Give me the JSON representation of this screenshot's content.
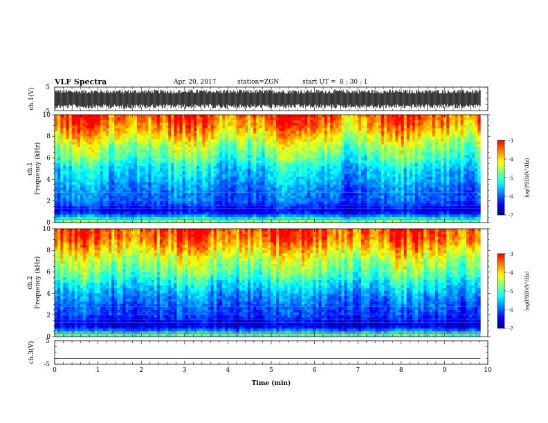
{
  "header": {
    "title": "VLF Spectra",
    "date": "Apr. 20, 2017",
    "station": "station=ZGN",
    "start_time": "start UT =  8 : 30 : 1"
  },
  "colors": {
    "spectrogram_ramp": [
      "#00008f",
      "#0000ff",
      "#0080ff",
      "#00ffff",
      "#80ff80",
      "#ffff00",
      "#ff8000",
      "#ff0000"
    ],
    "waveform": "#000000",
    "background": "#ffffff"
  },
  "chart_data": [
    {
      "type": "line",
      "panel": "ch1-waveform",
      "ylabel": "ch.1(V)",
      "ylim": [
        -5,
        5
      ],
      "yticks": [
        "5",
        "-5"
      ],
      "description_values": {
        "trace_min": -4.2,
        "trace_max": 4.0
      },
      "xlim": [
        0,
        10
      ],
      "x_data_end": 9.83
    },
    {
      "type": "heatmap",
      "panel": "ch1-spectrogram",
      "ylabel": "Frequency (kHz)",
      "ylabel_prefix": "ch.1",
      "ylim": [
        0,
        10
      ],
      "yticks": [
        "0",
        "2",
        "4",
        "6",
        "8",
        "10"
      ],
      "xlim": [
        0,
        10
      ],
      "x_data_end": 9.83,
      "colorbar": {
        "label": "log(PSD)(V²/Hz)",
        "range": [
          -7,
          -3
        ],
        "ticks": [
          "-3",
          "-4",
          "-5",
          "-6",
          "-7"
        ]
      },
      "frequency_profile_log_psd": [
        {
          "f": 0.3,
          "v": -5.2
        },
        {
          "f": 1.0,
          "v": -6.6
        },
        {
          "f": 2.0,
          "v": -6.0
        },
        {
          "f": 3.0,
          "v": -5.9
        },
        {
          "f": 4.0,
          "v": -5.6
        },
        {
          "f": 5.0,
          "v": -5.4
        },
        {
          "f": 6.0,
          "v": -4.9
        },
        {
          "f": 7.0,
          "v": -4.6
        },
        {
          "f": 8.0,
          "v": -4.1
        },
        {
          "f": 9.0,
          "v": -3.6
        },
        {
          "f": 10.0,
          "v": -3.3
        }
      ]
    },
    {
      "type": "heatmap",
      "panel": "ch2-spectrogram",
      "ylabel": "Frequency (kHz)",
      "ylabel_prefix": "ch.2",
      "ylim": [
        0,
        10
      ],
      "yticks": [
        "0",
        "2",
        "4",
        "6",
        "8",
        "10"
      ],
      "xlim": [
        0,
        10
      ],
      "x_data_end": 9.83,
      "colorbar": {
        "label": "log(PSD)(V²/Hz)",
        "range": [
          -7,
          -3
        ],
        "ticks": [
          "-3",
          "-4",
          "-5",
          "-6",
          "-7"
        ]
      },
      "frequency_profile_log_psd": [
        {
          "f": 0.3,
          "v": -5.4
        },
        {
          "f": 1.0,
          "v": -6.7
        },
        {
          "f": 2.0,
          "v": -6.2
        },
        {
          "f": 3.0,
          "v": -6.0
        },
        {
          "f": 4.0,
          "v": -5.7
        },
        {
          "f": 5.0,
          "v": -5.3
        },
        {
          "f": 6.0,
          "v": -4.8
        },
        {
          "f": 7.0,
          "v": -4.5
        },
        {
          "f": 8.0,
          "v": -4.0
        },
        {
          "f": 9.0,
          "v": -3.5
        },
        {
          "f": 10.0,
          "v": -3.3
        }
      ]
    },
    {
      "type": "line",
      "panel": "ch3-waveform",
      "ylabel": "ch.3(V)",
      "ylim": [
        -5,
        5
      ],
      "yticks": [
        "5",
        "-5"
      ],
      "description_values": {
        "trace_value": -2.5
      },
      "xlim": [
        0,
        10
      ],
      "x_data_end": 9.83
    }
  ],
  "xaxis": {
    "label": "Time (min)",
    "ticks": [
      "0",
      "1",
      "2",
      "3",
      "4",
      "5",
      "6",
      "7",
      "8",
      "9",
      "10"
    ]
  }
}
